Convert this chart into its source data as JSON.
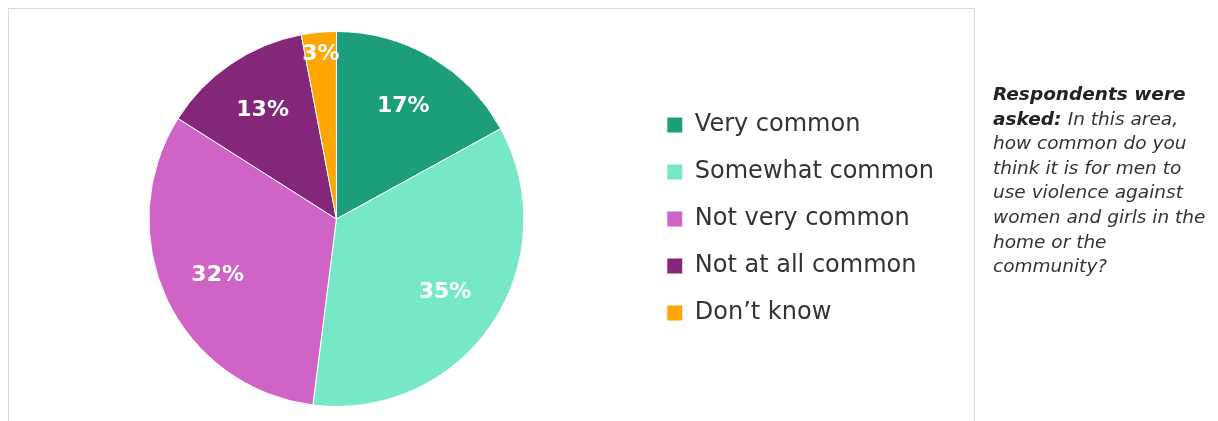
{
  "chart_data": {
    "type": "pie",
    "categories": [
      "Very common",
      "Somewhat common",
      "Not very common",
      "Not at all common",
      "Don’t know"
    ],
    "values": [
      17,
      35,
      32,
      13,
      3
    ],
    "colors": [
      "#1c9e7a",
      "#76e8c8",
      "#d063c6",
      "#852778",
      "#ffa600"
    ],
    "value_labels": [
      "17%",
      "35%",
      "32%",
      "13%",
      "3%"
    ],
    "legend": "right",
    "annotations": [
      "Respondents were asked:",
      "In this area, how common do you think it is for men to use violence against women and girls in the home or the community?"
    ]
  }
}
